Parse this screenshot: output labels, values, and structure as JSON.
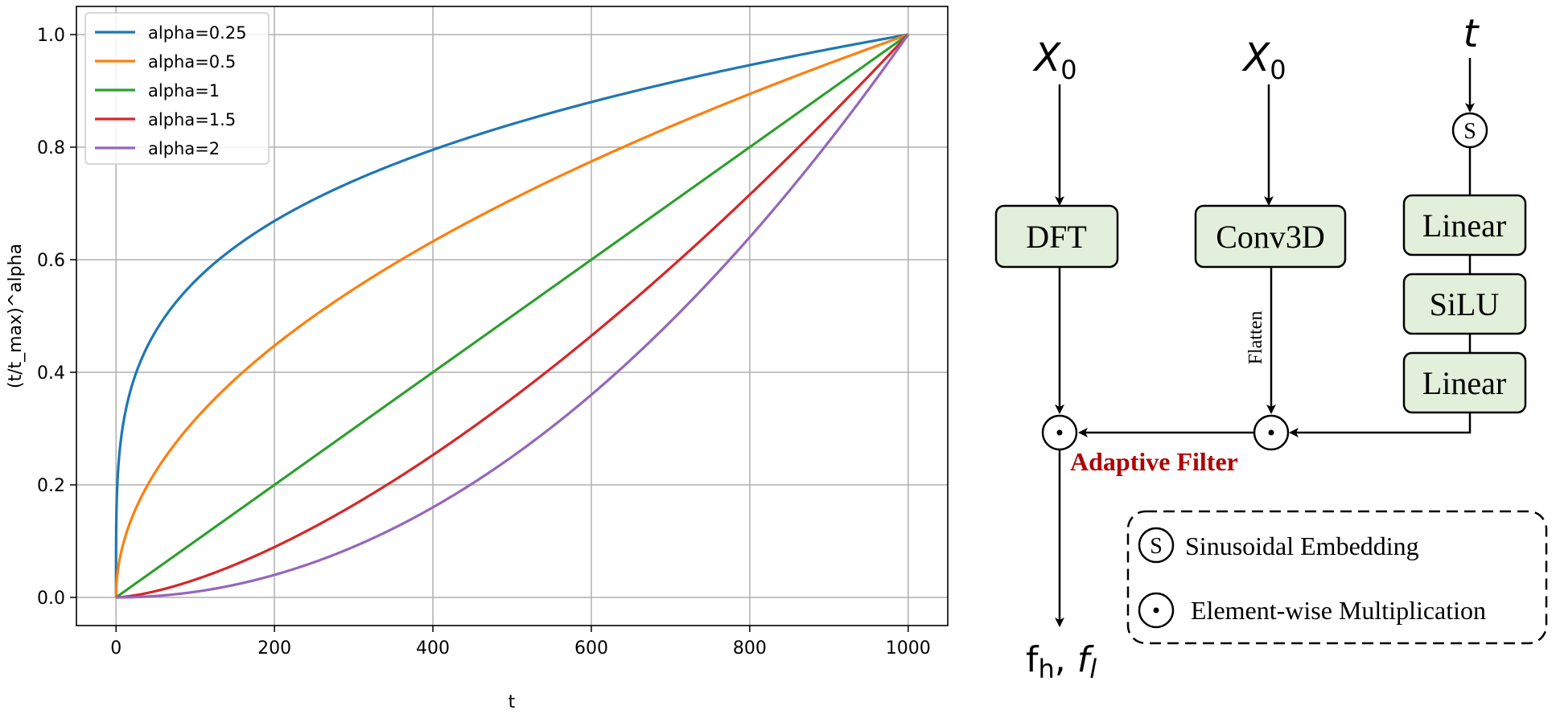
{
  "chart_data": {
    "type": "line",
    "xlabel": "t",
    "ylabel": "(t/t_max)^alpha",
    "xlim": [
      -50,
      1050
    ],
    "ylim": [
      -0.05,
      1.05
    ],
    "xticks": [
      0,
      200,
      400,
      600,
      800,
      1000
    ],
    "yticks": [
      0.0,
      0.2,
      0.4,
      0.6,
      0.8,
      1.0
    ],
    "xtick_labels": [
      "0",
      "200",
      "400",
      "600",
      "800",
      "1000"
    ],
    "ytick_labels": [
      "0.0",
      "0.2",
      "0.4",
      "0.6",
      "0.8",
      "1.0"
    ],
    "grid": true,
    "legend_position": "top-left",
    "t_max": 1000,
    "series": [
      {
        "name": "alpha=0.25",
        "alpha": 0.25,
        "color": "#1f77b4",
        "x": [
          0,
          1,
          10,
          50,
          100,
          200,
          300,
          400,
          500,
          600,
          700,
          800,
          900,
          1000
        ],
        "y": [
          0.0,
          0.178,
          0.316,
          0.473,
          0.562,
          0.669,
          0.74,
          0.795,
          0.841,
          0.88,
          0.915,
          0.946,
          0.974,
          1.0
        ]
      },
      {
        "name": "alpha=0.5",
        "alpha": 0.5,
        "color": "#ff7f0e",
        "x": [
          0,
          1,
          10,
          50,
          100,
          200,
          300,
          400,
          500,
          600,
          700,
          800,
          900,
          1000
        ],
        "y": [
          0.0,
          0.032,
          0.1,
          0.224,
          0.316,
          0.447,
          0.548,
          0.632,
          0.707,
          0.775,
          0.837,
          0.894,
          0.949,
          1.0
        ]
      },
      {
        "name": "alpha=1",
        "alpha": 1,
        "color": "#2ca02c",
        "x": [
          0,
          100,
          200,
          300,
          400,
          500,
          600,
          700,
          800,
          900,
          1000
        ],
        "y": [
          0.0,
          0.1,
          0.2,
          0.3,
          0.4,
          0.5,
          0.6,
          0.7,
          0.8,
          0.9,
          1.0
        ]
      },
      {
        "name": "alpha=1.5",
        "alpha": 1.5,
        "color": "#d62728",
        "x": [
          0,
          100,
          200,
          300,
          400,
          500,
          600,
          700,
          800,
          900,
          1000
        ],
        "y": [
          0.0,
          0.032,
          0.089,
          0.164,
          0.253,
          0.354,
          0.465,
          0.586,
          0.716,
          0.854,
          1.0
        ]
      },
      {
        "name": "alpha=2",
        "alpha": 2,
        "color": "#9467bd",
        "x": [
          0,
          100,
          200,
          300,
          400,
          500,
          600,
          700,
          800,
          900,
          1000
        ],
        "y": [
          0.0,
          0.01,
          0.04,
          0.09,
          0.16,
          0.25,
          0.36,
          0.49,
          0.64,
          0.81,
          1.0
        ]
      }
    ]
  },
  "diagram": {
    "input_left": {
      "main": "X",
      "sub": "0"
    },
    "input_mid": {
      "main": "X",
      "sub": "0"
    },
    "input_right": "t",
    "box_dft": "DFT",
    "box_conv": "Conv3D",
    "box_linear_top": "Linear",
    "box_silu": "SiLU",
    "box_linear_bottom": "Linear",
    "flatten_label": "Flatten",
    "filter_label": "Adaptive Filter",
    "output": {
      "f": "f",
      "sub_h": "h",
      "comma": ", ",
      "f2": "f",
      "sub_l": "l"
    },
    "symbol_sinusoidal": "S",
    "legend_sinusoidal": "Sinusoidal Embedding",
    "legend_multiply": "Element-wise Multiplication",
    "box_fill": "#e2efda"
  }
}
